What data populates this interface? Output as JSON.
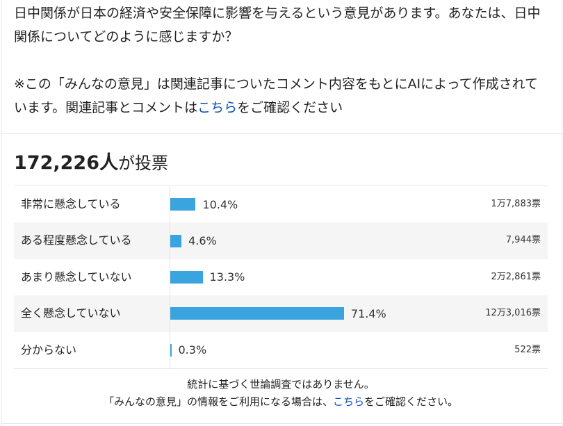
{
  "question": {
    "line1": "日中関係が日本の経済や安全保障に影響を与えるという意見があります。あなたは、日中",
    "line2": "関係についてどのように感じますか？",
    "note_line1": "※この「みんなの意見」は関連記事についたコメント内容をもとにAIによって作成されて",
    "note_line2_prefix": "います。関連記事とコメントは",
    "note_link": "こちら",
    "note_line2_suffix": "をご確認ください"
  },
  "summary": {
    "vote_count": "172,226人",
    "vote_suffix": "が投票"
  },
  "results": [
    {
      "label": "非常に懸念している",
      "percent": 10.4,
      "percent_text": "10.4%",
      "votes": "1万7,883票"
    },
    {
      "label": "ある程度懸念している",
      "percent": 4.6,
      "percent_text": "4.6%",
      "votes": "7,944票"
    },
    {
      "label": "あまり懸念していない",
      "percent": 13.3,
      "percent_text": "13.3%",
      "votes": "2万2,861票"
    },
    {
      "label": "全く懸念していない",
      "percent": 71.4,
      "percent_text": "71.4%",
      "votes": "12万3,016票"
    },
    {
      "label": "分からない",
      "percent": 0.3,
      "percent_text": "0.3%",
      "votes": "522票"
    }
  ],
  "footer": {
    "line1": "統計に基づく世論調査ではありません。",
    "line2_prefix": "「みんなの意見」の情報をご利用になる場合は、",
    "line2_link": "こちら",
    "line2_suffix": "をご確認ください。"
  },
  "colors": {
    "bar": "#3aa4de",
    "link": "#0b4fb3",
    "alt_row": "#f5f5f5"
  }
}
